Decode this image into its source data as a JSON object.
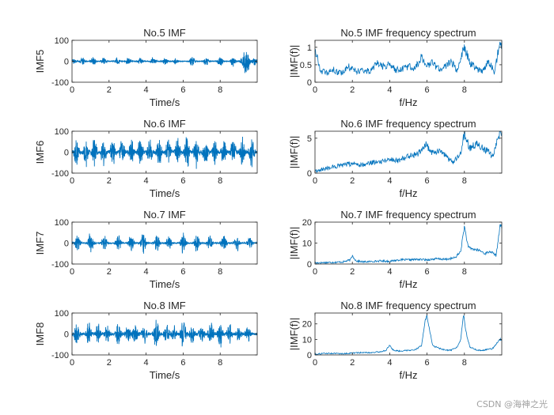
{
  "watermark": "CSDN @海神之光",
  "colors": {
    "line": "#0072BD",
    "axis": "#262626",
    "background": "#ffffff"
  },
  "chart_data": [
    {
      "type": "line",
      "signal": "time",
      "title": "No.5 IMF",
      "xlabel": "Time/s",
      "ylabel": "IMF5",
      "xlim": [
        0,
        10
      ],
      "ylim": [
        -100,
        100
      ],
      "xticks": [
        0,
        2,
        4,
        6,
        8
      ],
      "yticks": [
        -100,
        0,
        100
      ],
      "envelope": [
        {
          "x": 0.1,
          "amp": 15
        },
        {
          "x": 0.55,
          "amp": 22
        },
        {
          "x": 1.15,
          "amp": 25
        },
        {
          "x": 1.7,
          "amp": 18
        },
        {
          "x": 2.45,
          "amp": 20
        },
        {
          "x": 3.05,
          "amp": 25
        },
        {
          "x": 3.7,
          "amp": 22
        },
        {
          "x": 4.4,
          "amp": 25
        },
        {
          "x": 5.05,
          "amp": 22
        },
        {
          "x": 5.6,
          "amp": 20
        },
        {
          "x": 6.5,
          "amp": 30
        },
        {
          "x": 7.25,
          "amp": 28
        },
        {
          "x": 8.0,
          "amp": 35
        },
        {
          "x": 8.7,
          "amp": 30
        },
        {
          "x": 9.25,
          "amp": 45
        },
        {
          "x": 9.45,
          "amp": 75
        },
        {
          "x": 9.85,
          "amp": 30
        }
      ],
      "carrier_hz": 20,
      "floor": 2,
      "seed": 5
    },
    {
      "type": "line",
      "signal": "spectrum",
      "title": "No.5 IMF frequency spectrum",
      "xlabel": "f/Hz",
      "ylabel": "|IMF(f)|",
      "xlim": [
        0,
        10
      ],
      "ylim": [
        0,
        1.2
      ],
      "xticks": [
        0,
        2,
        4,
        6,
        8
      ],
      "yticks": [
        0,
        0.5,
        1
      ],
      "ytick_labels": [
        "0",
        "0.5",
        "1"
      ],
      "points": [
        [
          0,
          0.95
        ],
        [
          0.3,
          0.35
        ],
        [
          0.6,
          0.25
        ],
        [
          1.0,
          0.35
        ],
        [
          1.4,
          0.25
        ],
        [
          1.8,
          0.45
        ],
        [
          2.2,
          0.3
        ],
        [
          2.6,
          0.35
        ],
        [
          3.0,
          0.3
        ],
        [
          3.3,
          0.55
        ],
        [
          3.6,
          0.45
        ],
        [
          4.0,
          0.5
        ],
        [
          4.3,
          0.35
        ],
        [
          4.7,
          0.4
        ],
        [
          5.0,
          0.45
        ],
        [
          5.3,
          0.4
        ],
        [
          5.7,
          0.7
        ],
        [
          6.0,
          0.5
        ],
        [
          6.3,
          0.55
        ],
        [
          6.7,
          0.35
        ],
        [
          7.0,
          0.45
        ],
        [
          7.3,
          0.6
        ],
        [
          7.6,
          0.35
        ],
        [
          8.0,
          1.05
        ],
        [
          8.3,
          0.55
        ],
        [
          8.6,
          0.4
        ],
        [
          9.0,
          0.3
        ],
        [
          9.3,
          0.6
        ],
        [
          9.6,
          0.3
        ],
        [
          9.9,
          1.1
        ]
      ],
      "noise": 0.12,
      "seed": 15
    },
    {
      "type": "line",
      "signal": "time",
      "title": "No.6 IMF",
      "xlabel": "Time/s",
      "ylabel": "IMF6",
      "xlim": [
        0,
        10
      ],
      "ylim": [
        -100,
        100
      ],
      "xticks": [
        0,
        2,
        4,
        6,
        8
      ],
      "yticks": [
        -100,
        0,
        100
      ],
      "envelope": [
        {
          "x": 0.25,
          "amp": 85
        },
        {
          "x": 0.75,
          "amp": 80
        },
        {
          "x": 1.2,
          "amp": 85
        },
        {
          "x": 1.7,
          "amp": 80
        },
        {
          "x": 2.2,
          "amp": 85
        },
        {
          "x": 2.7,
          "amp": 85
        },
        {
          "x": 3.2,
          "amp": 80
        },
        {
          "x": 3.7,
          "amp": 85
        },
        {
          "x": 4.2,
          "amp": 80
        },
        {
          "x": 4.7,
          "amp": 85
        },
        {
          "x": 5.2,
          "amp": 80
        },
        {
          "x": 5.7,
          "amp": 85
        },
        {
          "x": 6.2,
          "amp": 95
        },
        {
          "x": 6.7,
          "amp": 85
        },
        {
          "x": 7.2,
          "amp": 85
        },
        {
          "x": 7.7,
          "amp": 80
        },
        {
          "x": 8.2,
          "amp": 85
        },
        {
          "x": 8.7,
          "amp": 90
        },
        {
          "x": 9.2,
          "amp": 85
        },
        {
          "x": 9.7,
          "amp": 95
        }
      ],
      "carrier_hz": 8,
      "floor": 6,
      "seed": 6
    },
    {
      "type": "line",
      "signal": "spectrum",
      "title": "No.6 IMF frequency spectrum",
      "xlabel": "f/Hz",
      "ylabel": "|IMF(f)|",
      "xlim": [
        0,
        10
      ],
      "ylim": [
        0,
        6
      ],
      "xticks": [
        0,
        2,
        4,
        6,
        8
      ],
      "yticks": [
        0,
        5
      ],
      "points": [
        [
          0,
          0.3
        ],
        [
          0.5,
          0.6
        ],
        [
          1.0,
          0.9
        ],
        [
          1.5,
          1.1
        ],
        [
          2.0,
          1.4
        ],
        [
          2.5,
          1.2
        ],
        [
          3.0,
          1.5
        ],
        [
          3.5,
          1.7
        ],
        [
          4.0,
          2.0
        ],
        [
          4.5,
          1.8
        ],
        [
          5.0,
          2.5
        ],
        [
          5.5,
          2.8
        ],
        [
          5.9,
          4.2
        ],
        [
          6.2,
          3.0
        ],
        [
          6.6,
          3.2
        ],
        [
          7.0,
          2.4
        ],
        [
          7.4,
          1.5
        ],
        [
          7.8,
          2.8
        ],
        [
          8.0,
          5.7
        ],
        [
          8.3,
          3.5
        ],
        [
          8.6,
          4.2
        ],
        [
          8.9,
          3.8
        ],
        [
          9.2,
          3.2
        ],
        [
          9.5,
          2.5
        ],
        [
          9.9,
          5.5
        ]
      ],
      "noise": 0.5,
      "seed": 16
    },
    {
      "type": "line",
      "signal": "time",
      "title": "No.7 IMF",
      "xlabel": "Time/s",
      "ylabel": "IMF7",
      "xlim": [
        0,
        10
      ],
      "ylim": [
        -100,
        100
      ],
      "xticks": [
        0,
        2,
        4,
        6,
        8
      ],
      "yticks": [
        -100,
        0,
        100
      ],
      "envelope": [
        {
          "x": 0.3,
          "amp": 55
        },
        {
          "x": 1.0,
          "amp": 65
        },
        {
          "x": 1.75,
          "amp": 45
        },
        {
          "x": 2.5,
          "amp": 50
        },
        {
          "x": 3.2,
          "amp": 55
        },
        {
          "x": 3.85,
          "amp": 65
        },
        {
          "x": 4.6,
          "amp": 55
        },
        {
          "x": 5.25,
          "amp": 45
        },
        {
          "x": 6.0,
          "amp": 70
        },
        {
          "x": 6.75,
          "amp": 50
        },
        {
          "x": 7.45,
          "amp": 45
        },
        {
          "x": 8.2,
          "amp": 60
        },
        {
          "x": 8.9,
          "amp": 45
        },
        {
          "x": 9.6,
          "amp": 35
        }
      ],
      "carrier_hz": 6,
      "floor": 4,
      "seed": 7
    },
    {
      "type": "line",
      "signal": "spectrum",
      "title": "No.7 IMF frequency spectrum",
      "xlabel": "f/Hz",
      "ylabel": "|IMF(f)|",
      "xlim": [
        0,
        10
      ],
      "ylim": [
        0,
        20
      ],
      "xticks": [
        0,
        2,
        4,
        6,
        8
      ],
      "yticks": [
        0,
        10,
        20
      ],
      "points": [
        [
          0,
          0.5
        ],
        [
          0.5,
          0.7
        ],
        [
          1.0,
          0.8
        ],
        [
          1.5,
          1.0
        ],
        [
          1.9,
          2.0
        ],
        [
          2.0,
          4.0
        ],
        [
          2.2,
          1.5
        ],
        [
          2.6,
          1.0
        ],
        [
          3.0,
          1.2
        ],
        [
          3.5,
          1.5
        ],
        [
          4.0,
          1.3
        ],
        [
          4.5,
          2.0
        ],
        [
          5.0,
          2.0
        ],
        [
          5.5,
          2.2
        ],
        [
          6.0,
          2.0
        ],
        [
          6.5,
          2.5
        ],
        [
          7.0,
          2.2
        ],
        [
          7.5,
          3.0
        ],
        [
          7.8,
          6.0
        ],
        [
          8.0,
          18.0
        ],
        [
          8.2,
          8.0
        ],
        [
          8.5,
          7.0
        ],
        [
          8.8,
          6.5
        ],
        [
          9.1,
          5.0
        ],
        [
          9.4,
          6.0
        ],
        [
          9.7,
          4.0
        ],
        [
          9.9,
          18.0
        ]
      ],
      "noise": 0.8,
      "seed": 17
    },
    {
      "type": "line",
      "signal": "time",
      "title": "No.8 IMF",
      "xlabel": "Time/s",
      "ylabel": "IMF8",
      "xlim": [
        0,
        10
      ],
      "ylim": [
        -100,
        100
      ],
      "xticks": [
        0,
        2,
        4,
        6,
        8
      ],
      "yticks": [
        -100,
        0,
        100
      ],
      "envelope": [
        {
          "x": 0.25,
          "amp": 65
        },
        {
          "x": 0.9,
          "amp": 55
        },
        {
          "x": 1.4,
          "amp": 50
        },
        {
          "x": 1.9,
          "amp": 55
        },
        {
          "x": 2.5,
          "amp": 70
        },
        {
          "x": 3.0,
          "amp": 50
        },
        {
          "x": 3.4,
          "amp": 70
        },
        {
          "x": 3.9,
          "amp": 55
        },
        {
          "x": 4.55,
          "amp": 90
        },
        {
          "x": 5.1,
          "amp": 60
        },
        {
          "x": 5.5,
          "amp": 45
        },
        {
          "x": 6.0,
          "amp": 95
        },
        {
          "x": 6.5,
          "amp": 60
        },
        {
          "x": 7.0,
          "amp": 55
        },
        {
          "x": 7.5,
          "amp": 70
        },
        {
          "x": 8.0,
          "amp": 75
        },
        {
          "x": 8.5,
          "amp": 50
        },
        {
          "x": 9.0,
          "amp": 40
        },
        {
          "x": 9.5,
          "amp": 40
        }
      ],
      "carrier_hz": 5,
      "floor": 8,
      "seed": 8
    },
    {
      "type": "line",
      "signal": "spectrum",
      "title": "No.8 IMF frequency spectrum",
      "xlabel": "f/Hz",
      "ylabel": "|IMF(f)|",
      "xlim": [
        0,
        10
      ],
      "ylim": [
        0,
        27
      ],
      "xticks": [
        0,
        2,
        4,
        6,
        8
      ],
      "yticks": [
        0,
        10,
        20
      ],
      "points": [
        [
          0,
          0.5
        ],
        [
          0.5,
          1.0
        ],
        [
          1.0,
          1.0
        ],
        [
          1.5,
          0.8
        ],
        [
          2.0,
          1.2
        ],
        [
          2.5,
          1.5
        ],
        [
          3.0,
          1.5
        ],
        [
          3.5,
          2.0
        ],
        [
          3.8,
          3.0
        ],
        [
          4.0,
          6.0
        ],
        [
          4.2,
          3.0
        ],
        [
          4.5,
          2.5
        ],
        [
          5.0,
          3.0
        ],
        [
          5.4,
          3.5
        ],
        [
          5.7,
          6.0
        ],
        [
          5.9,
          22.0
        ],
        [
          6.0,
          25.0
        ],
        [
          6.1,
          18.0
        ],
        [
          6.3,
          6.0
        ],
        [
          6.7,
          4.0
        ],
        [
          7.0,
          3.0
        ],
        [
          7.3,
          3.0
        ],
        [
          7.6,
          5.0
        ],
        [
          7.8,
          10.0
        ],
        [
          7.95,
          26.0
        ],
        [
          8.1,
          14.0
        ],
        [
          8.3,
          5.0
        ],
        [
          8.7,
          3.0
        ],
        [
          9.0,
          3.0
        ],
        [
          9.5,
          4.0
        ],
        [
          9.9,
          10.0
        ]
      ],
      "noise": 0.7,
      "seed": 18
    }
  ]
}
